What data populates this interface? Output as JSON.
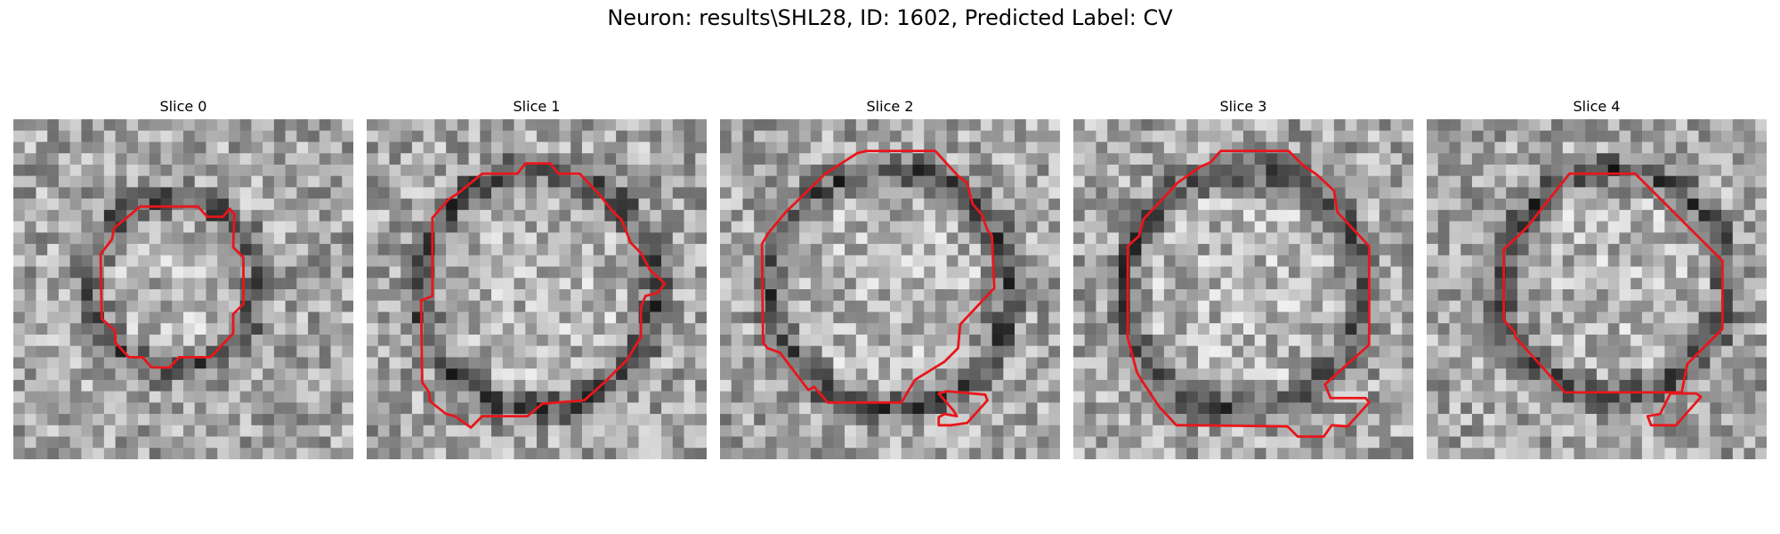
{
  "figure": {
    "suptitle": "Neuron: results\\SHL28, ID: 1602, Predicted Label: CV"
  },
  "panels": [
    {
      "title": "Slice 0",
      "image": "grayscale-microscopy-tile",
      "seed": 11,
      "ring": "small-round"
    },
    {
      "title": "Slice 1",
      "image": "grayscale-microscopy-tile",
      "seed": 23,
      "ring": "large"
    },
    {
      "title": "Slice 2",
      "image": "grayscale-microscopy-tile",
      "seed": 37,
      "ring": "large"
    },
    {
      "title": "Slice 3",
      "image": "grayscale-microscopy-tile",
      "seed": 41,
      "ring": "large"
    },
    {
      "title": "Slice 4",
      "image": "grayscale-microscopy-tile",
      "seed": 53,
      "ring": "octagon"
    }
  ],
  "colors": {
    "contour": "#e8161b"
  }
}
